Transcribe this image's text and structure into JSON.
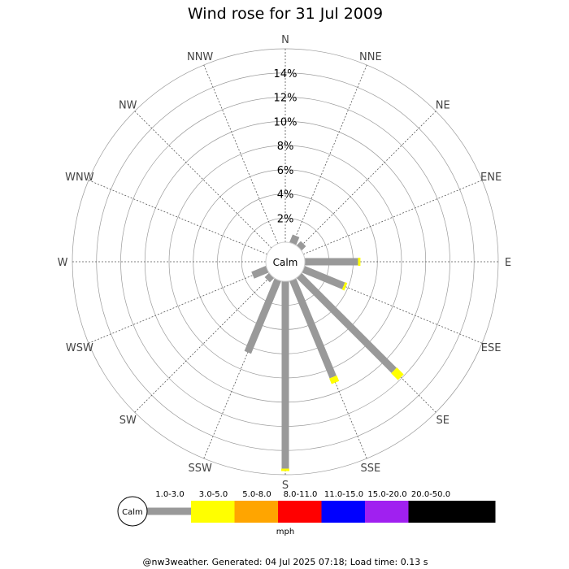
{
  "chart_data": {
    "type": "wind-rose",
    "title": "Wind rose for 31 Jul 2009",
    "directions": [
      "N",
      "NNE",
      "NE",
      "ENE",
      "E",
      "ESE",
      "SE",
      "SSE",
      "S",
      "SSW",
      "SW",
      "WSW",
      "W",
      "WNW",
      "NW",
      "NNW"
    ],
    "radial_ticks": [
      "2%",
      "4%",
      "6%",
      "8%",
      "10%",
      "12%",
      "14%"
    ],
    "radial_max_percent": 16,
    "calm_label": "Calm",
    "speed_bins": [
      {
        "label": "1.0-3.0",
        "color": "#999999"
      },
      {
        "label": "3.0-5.0",
        "color": "#ffff00"
      },
      {
        "label": "5.0-8.0",
        "color": "#ffa500"
      },
      {
        "label": "8.0-11.0",
        "color": "#ff0000"
      },
      {
        "label": "11.0-15.0",
        "color": "#0000ff"
      },
      {
        "label": "15.0-20.0",
        "color": "#a020f0"
      },
      {
        "label": "20.0-50.0",
        "color": "#000000"
      }
    ],
    "series": [
      {
        "name": "1.0-3.0",
        "values": [
          0.0,
          0.7,
          0.5,
          0.0,
          4.4,
          3.6,
          11.1,
          8.7,
          15.5,
          6.5,
          0.5,
          1.3,
          0.0,
          0.0,
          0.0,
          0.0
        ]
      },
      {
        "name": "3.0-5.0",
        "values": [
          0.0,
          0.0,
          0.0,
          0.0,
          0.2,
          0.2,
          0.8,
          0.5,
          0.2,
          0.0,
          0.0,
          0.0,
          0.0,
          0.0,
          0.0,
          0.0
        ]
      }
    ],
    "legend_unit": "mph"
  },
  "footer": "@nw3weather. Generated: 04 Jul 2025 07:18; Load time: 0.13 s"
}
